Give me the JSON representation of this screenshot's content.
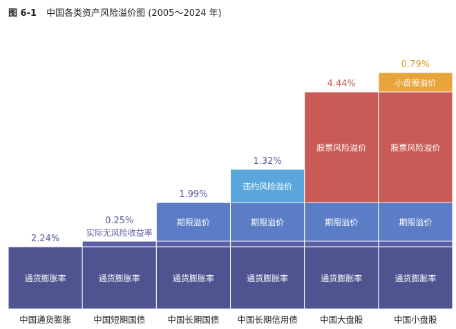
{
  "figure": {
    "number": "图 6-1",
    "title": "中国各类资产风险溢价图 (2005～2024 年)"
  },
  "colors": {
    "inflation": "#4f5490",
    "riskfree": "#5b5fa8",
    "term": "#5b7dc6",
    "credit": "#5aa7de",
    "equity": "#c95a55",
    "smallcap": "#e8a43a",
    "value_text": "#555a9c",
    "equity_text": "#c95a55",
    "smallcap_text": "#e39a2a"
  },
  "chart_data": {
    "type": "bar",
    "stacked": true,
    "categories": [
      "中国通货膨胀",
      "中国短期国债",
      "中国长期国债",
      "中国长期信用债",
      "中国大盘股",
      "中国小盘股"
    ],
    "series": [
      {
        "name": "通货膨胀率",
        "color_key": "inflation",
        "values": [
          2.24,
          2.24,
          2.24,
          2.24,
          2.24,
          2.24
        ],
        "labels": [
          "通货膨胀率",
          "通货膨胀率",
          "通货膨胀率",
          "通货膨胀率",
          "通货膨胀率",
          "通货膨胀率"
        ]
      },
      {
        "name": "实际无风险收益率",
        "color_key": "riskfree",
        "values": [
          0,
          0.25,
          0.25,
          0.25,
          0.25,
          0.25
        ],
        "labels": [
          "",
          "",
          "",
          "",
          "",
          ""
        ]
      },
      {
        "name": "期限溢价",
        "color_key": "term",
        "values": [
          0,
          0,
          1.99,
          1.99,
          1.99,
          1.99
        ],
        "labels": [
          "",
          "",
          "期限溢价",
          "期限溢价",
          "期限溢价",
          "期限溢价"
        ]
      },
      {
        "name": "违约风险溢价",
        "color_key": "credit",
        "values": [
          0,
          0,
          0,
          1.32,
          0,
          0
        ],
        "labels": [
          "",
          "",
          "",
          "违约风险溢价",
          "",
          ""
        ]
      },
      {
        "name": "股票风险溢价",
        "color_key": "equity",
        "values": [
          0,
          0,
          0,
          0,
          4.44,
          4.44
        ],
        "labels": [
          "",
          "",
          "",
          "",
          "股票风险溢价",
          "股票风险溢价"
        ]
      },
      {
        "name": "小盘股溢价",
        "color_key": "smallcap",
        "values": [
          0,
          0,
          0,
          0,
          0,
          0.79
        ],
        "labels": [
          "",
          "",
          "",
          "",
          "",
          "小盘股溢价"
        ]
      }
    ],
    "increment_labels": [
      {
        "category_index": 0,
        "value": "2.24%",
        "caption": "",
        "color_key": "value_text"
      },
      {
        "category_index": 1,
        "value": "0.25%",
        "caption": "实际无风险收益率",
        "color_key": "value_text"
      },
      {
        "category_index": 2,
        "value": "1.99%",
        "caption": "",
        "color_key": "value_text"
      },
      {
        "category_index": 3,
        "value": "1.32%",
        "caption": "",
        "color_key": "value_text"
      },
      {
        "category_index": 4,
        "value": "4.44%",
        "caption": "",
        "color_key": "equity_text"
      },
      {
        "category_index": 5,
        "value": "0.79%",
        "caption": "",
        "color_key": "smallcap_text"
      }
    ]
  }
}
